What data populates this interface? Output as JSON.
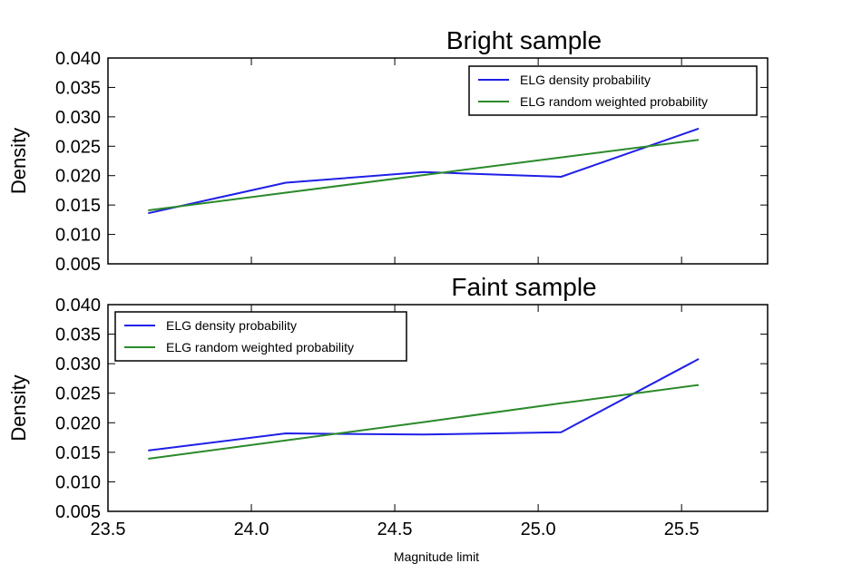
{
  "figure": {
    "xlabel": "Magnitude limit"
  },
  "chart_data": [
    {
      "type": "line",
      "title": "Bright sample",
      "xlabel": "",
      "ylabel": "Density",
      "xlim": [
        23.5,
        25.8
      ],
      "ylim": [
        0.005,
        0.04
      ],
      "xticks": [
        23.5,
        24.0,
        24.5,
        25.0,
        25.5
      ],
      "xtick_labels": [
        "",
        "",
        "",
        "",
        ""
      ],
      "yticks": [
        0.005,
        0.01,
        0.015,
        0.02,
        0.025,
        0.03,
        0.035,
        0.04
      ],
      "ytick_labels": [
        "0.005",
        "0.010",
        "0.015",
        "0.020",
        "0.025",
        "0.030",
        "0.035",
        "0.040"
      ],
      "legend_position": "top-right",
      "series": [
        {
          "name": "ELG density probability",
          "color": "#1f1fe8",
          "x": [
            23.64,
            24.12,
            24.6,
            25.08,
            25.56
          ],
          "values": [
            0.0136,
            0.0188,
            0.0206,
            0.0198,
            0.028
          ]
        },
        {
          "name": "ELG random weighted probability",
          "color": "#2a8a2a",
          "x": [
            23.64,
            24.12,
            24.6,
            25.08,
            25.56
          ],
          "values": [
            0.0141,
            0.0171,
            0.0201,
            0.0231,
            0.0261
          ]
        }
      ]
    },
    {
      "type": "line",
      "title": "Faint sample",
      "xlabel": "Magnitude limit",
      "ylabel": "Density",
      "xlim": [
        23.5,
        25.8
      ],
      "ylim": [
        0.005,
        0.04
      ],
      "xticks": [
        23.5,
        24.0,
        24.5,
        25.0,
        25.5
      ],
      "xtick_labels": [
        "23.5",
        "24.0",
        "24.5",
        "25.0",
        "25.5"
      ],
      "yticks": [
        0.005,
        0.01,
        0.015,
        0.02,
        0.025,
        0.03,
        0.035,
        0.04
      ],
      "ytick_labels": [
        "0.005",
        "0.010",
        "0.015",
        "0.020",
        "0.025",
        "0.030",
        "0.035",
        "0.040"
      ],
      "legend_position": "top-left",
      "series": [
        {
          "name": "ELG density probability",
          "color": "#1f1fe8",
          "x": [
            23.64,
            24.12,
            24.6,
            25.08,
            25.56
          ],
          "values": [
            0.0153,
            0.0182,
            0.018,
            0.0184,
            0.0308
          ]
        },
        {
          "name": "ELG random weighted probability",
          "color": "#2a8a2a",
          "x": [
            23.64,
            24.12,
            24.6,
            25.08,
            25.56
          ],
          "values": [
            0.0139,
            0.017,
            0.0201,
            0.0233,
            0.0264
          ]
        }
      ]
    }
  ]
}
